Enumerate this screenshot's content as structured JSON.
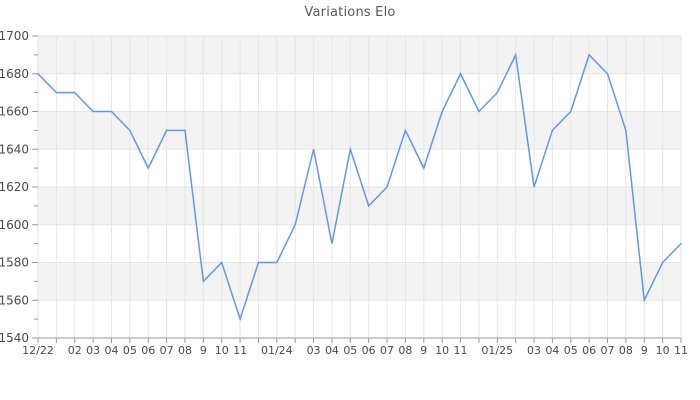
{
  "chart_data": {
    "type": "line",
    "title": "Variations Elo",
    "categories": [
      "12/22",
      "",
      "02",
      "03",
      "04",
      "05",
      "06",
      "07",
      "08",
      "9",
      "10",
      "11",
      "",
      "01/24",
      "",
      "03",
      "04",
      "05",
      "06",
      "07",
      "08",
      "9",
      "10",
      "11",
      "",
      "01/25",
      "",
      "03",
      "04",
      "05",
      "06",
      "07",
      "08",
      "9",
      "10",
      "11"
    ],
    "values": [
      1680,
      1670,
      1670,
      1660,
      1660,
      1650,
      1630,
      1650,
      1650,
      1570,
      1580,
      1550,
      1580,
      1580,
      1600,
      1640,
      1590,
      1640,
      1610,
      1620,
      1650,
      1630,
      1660,
      1680,
      1660,
      1670,
      1690,
      1620,
      1650,
      1660,
      1690,
      1680,
      1650,
      1560,
      1580,
      1590
    ],
    "xlabel": "",
    "ylabel": "",
    "ylim": [
      1540,
      1700
    ],
    "y_major_step": 20,
    "y_minor_step": 10,
    "y_tick_labels": [
      "1540",
      "1560",
      "1580",
      "1600",
      "1620",
      "1640",
      "1660",
      "1680",
      "1700"
    ],
    "grid": true,
    "legend": "none",
    "colors": {
      "line": "#6495ed",
      "grid": "#e6e6e6",
      "band_alt": "#f3f3f3",
      "band_base": "#ffffff",
      "axis": "#999999",
      "tick_label": "#4b4b4b",
      "title": "#58585a"
    }
  }
}
